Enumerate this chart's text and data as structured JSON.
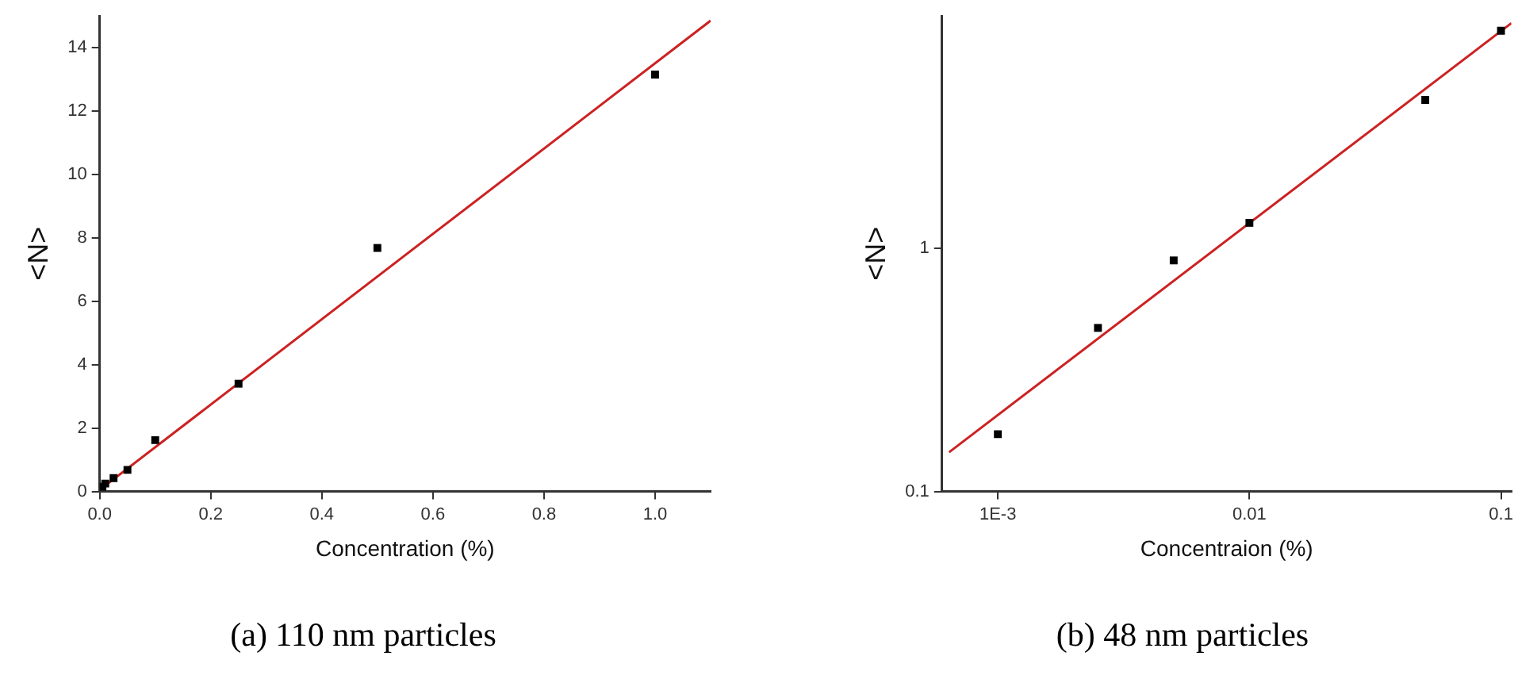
{
  "chart_data": [
    {
      "type": "scatter",
      "title": "(a) 110 nm particles",
      "xlabel": "Concentration (%)",
      "ylabel": "<N>",
      "xlim": [
        0,
        1.1
      ],
      "ylim": [
        0,
        15
      ],
      "xticks": [
        {
          "value": 0,
          "label": "0.0"
        },
        {
          "value": 0.2,
          "label": "0.2"
        },
        {
          "value": 0.4,
          "label": "0.4"
        },
        {
          "value": 0.6,
          "label": "0.6"
        },
        {
          "value": 0.8,
          "label": "0.8"
        },
        {
          "value": 1,
          "label": "1.0"
        }
      ],
      "yticks": [
        0,
        2,
        4,
        6,
        8,
        10,
        12,
        14
      ],
      "grid": false,
      "legend": false,
      "series": [
        {
          "marker": "square",
          "color": "#000000",
          "x": [
            0.005,
            0.01,
            0.025,
            0.05,
            0.1,
            0.25,
            0.5,
            1.0
          ],
          "values": [
            0.15,
            0.25,
            0.42,
            0.68,
            1.62,
            3.4,
            7.68,
            13.15
          ]
        },
        {
          "type": "line",
          "marker": "none",
          "color": "#cc2222",
          "x": [
            0,
            1.1
          ],
          "values": [
            0.05,
            14.85
          ]
        }
      ]
    },
    {
      "type": "scatter",
      "title": "(b) 48 nm particles",
      "xlabel": "Concentraion (%)",
      "ylabel": "<N>",
      "log": "xy",
      "xlim": [
        0.0006,
        0.11
      ],
      "ylim": [
        0.1,
        9
      ],
      "xticks": [
        {
          "value": 0.001,
          "label": "1E-3"
        },
        0.01,
        0.1
      ],
      "yticks": [
        0.1,
        1
      ],
      "grid": false,
      "legend": false,
      "series": [
        {
          "marker": "square",
          "color": "#000000",
          "x": [
            0.001,
            0.0025,
            0.005,
            0.01,
            0.05,
            0.1
          ],
          "values": [
            0.172,
            0.47,
            0.89,
            1.27,
            4.06,
            7.82
          ]
        },
        {
          "type": "line",
          "marker": "none",
          "color": "#cc2222",
          "x": [
            0.00064,
            0.11
          ],
          "values": [
            0.145,
            8.4
          ]
        }
      ]
    }
  ]
}
